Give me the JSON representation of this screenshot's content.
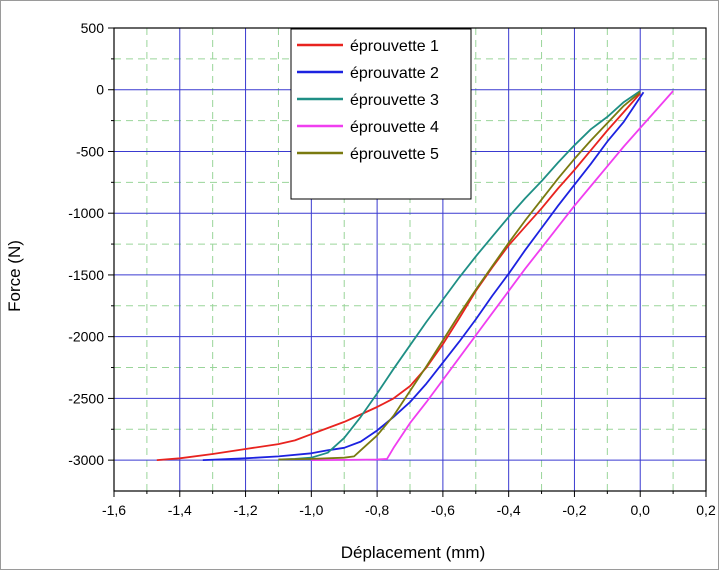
{
  "chart_data": {
    "type": "line",
    "xlabel": "Déplacement (mm)",
    "ylabel": "Force (N)",
    "xlim": [
      -1.6,
      0.2
    ],
    "ylim": [
      -3250,
      500
    ],
    "x_ticks": [
      "-1,6",
      "-1,4",
      "-1,2",
      "-1,0",
      "-0,8",
      "-0,6",
      "-0,4",
      "-0,2",
      "0,0",
      "0,2"
    ],
    "y_ticks": [
      "500",
      "0",
      "-500",
      "-1000",
      "-1500",
      "-2000",
      "-2500",
      "-3000"
    ],
    "grid": true,
    "legend_position": "top-center",
    "series": [
      {
        "name": "éprouvette 1",
        "color": "#e8231f",
        "points": [
          [
            0.0,
            -30
          ],
          [
            -0.05,
            -180
          ],
          [
            -0.1,
            -330
          ],
          [
            -0.15,
            -490
          ],
          [
            -0.2,
            -650
          ],
          [
            -0.25,
            -800
          ],
          [
            -0.3,
            -960
          ],
          [
            -0.35,
            -1110
          ],
          [
            -0.4,
            -1260
          ],
          [
            -0.45,
            -1440
          ],
          [
            -0.5,
            -1630
          ],
          [
            -0.55,
            -1850
          ],
          [
            -0.6,
            -2060
          ],
          [
            -0.65,
            -2250
          ],
          [
            -0.7,
            -2400
          ],
          [
            -0.75,
            -2500
          ],
          [
            -0.8,
            -2570
          ],
          [
            -0.85,
            -2630
          ],
          [
            -0.9,
            -2690
          ],
          [
            -0.95,
            -2740
          ],
          [
            -1.0,
            -2790
          ],
          [
            -1.05,
            -2840
          ],
          [
            -1.1,
            -2870
          ],
          [
            -1.2,
            -2910
          ],
          [
            -1.3,
            -2950
          ],
          [
            -1.4,
            -2985
          ],
          [
            -1.47,
            -3000
          ]
        ]
      },
      {
        "name": "éprouvatte 2",
        "color": "#1c22e0",
        "points": [
          [
            0.01,
            -20
          ],
          [
            -0.05,
            -260
          ],
          [
            -0.1,
            -420
          ],
          [
            -0.15,
            -600
          ],
          [
            -0.2,
            -770
          ],
          [
            -0.25,
            -940
          ],
          [
            -0.3,
            -1120
          ],
          [
            -0.35,
            -1300
          ],
          [
            -0.4,
            -1490
          ],
          [
            -0.45,
            -1670
          ],
          [
            -0.5,
            -1860
          ],
          [
            -0.55,
            -2040
          ],
          [
            -0.6,
            -2210
          ],
          [
            -0.65,
            -2380
          ],
          [
            -0.7,
            -2530
          ],
          [
            -0.75,
            -2650
          ],
          [
            -0.8,
            -2760
          ],
          [
            -0.85,
            -2850
          ],
          [
            -0.9,
            -2900
          ],
          [
            -0.95,
            -2920
          ],
          [
            -1.0,
            -2945
          ],
          [
            -1.1,
            -2970
          ],
          [
            -1.2,
            -2985
          ],
          [
            -1.33,
            -3000
          ]
        ]
      },
      {
        "name": "éprouvette 3",
        "color": "#1f8f85",
        "points": [
          [
            0.0,
            -10
          ],
          [
            -0.05,
            -100
          ],
          [
            -0.1,
            -220
          ],
          [
            -0.15,
            -320
          ],
          [
            -0.2,
            -450
          ],
          [
            -0.25,
            -590
          ],
          [
            -0.3,
            -740
          ],
          [
            -0.35,
            -880
          ],
          [
            -0.4,
            -1030
          ],
          [
            -0.45,
            -1190
          ],
          [
            -0.5,
            -1350
          ],
          [
            -0.55,
            -1520
          ],
          [
            -0.6,
            -1700
          ],
          [
            -0.65,
            -1880
          ],
          [
            -0.7,
            -2070
          ],
          [
            -0.75,
            -2260
          ],
          [
            -0.8,
            -2460
          ],
          [
            -0.85,
            -2650
          ],
          [
            -0.9,
            -2820
          ],
          [
            -0.95,
            -2940
          ],
          [
            -1.0,
            -2980
          ],
          [
            -1.05,
            -2990
          ],
          [
            -1.1,
            -2995
          ]
        ]
      },
      {
        "name": "éprouvette 4",
        "color": "#f03ef0",
        "points": [
          [
            0.1,
            -10
          ],
          [
            0.05,
            -160
          ],
          [
            0.0,
            -310
          ],
          [
            -0.05,
            -460
          ],
          [
            -0.1,
            -620
          ],
          [
            -0.15,
            -780
          ],
          [
            -0.2,
            -940
          ],
          [
            -0.25,
            -1110
          ],
          [
            -0.3,
            -1280
          ],
          [
            -0.35,
            -1450
          ],
          [
            -0.4,
            -1630
          ],
          [
            -0.45,
            -1810
          ],
          [
            -0.5,
            -1990
          ],
          [
            -0.55,
            -2170
          ],
          [
            -0.6,
            -2350
          ],
          [
            -0.65,
            -2530
          ],
          [
            -0.7,
            -2700
          ],
          [
            -0.75,
            -2900
          ],
          [
            -0.77,
            -2990
          ],
          [
            -0.8,
            -2995
          ],
          [
            -0.9,
            -2998
          ],
          [
            -1.0,
            -3000
          ]
        ]
      },
      {
        "name": "éprouvette 5",
        "color": "#7a7a10",
        "points": [
          [
            0.0,
            -20
          ],
          [
            -0.05,
            -130
          ],
          [
            -0.1,
            -270
          ],
          [
            -0.15,
            -410
          ],
          [
            -0.2,
            -560
          ],
          [
            -0.25,
            -720
          ],
          [
            -0.3,
            -890
          ],
          [
            -0.35,
            -1060
          ],
          [
            -0.4,
            -1240
          ],
          [
            -0.45,
            -1430
          ],
          [
            -0.5,
            -1620
          ],
          [
            -0.55,
            -1820
          ],
          [
            -0.6,
            -2030
          ],
          [
            -0.65,
            -2240
          ],
          [
            -0.7,
            -2440
          ],
          [
            -0.75,
            -2640
          ],
          [
            -0.8,
            -2800
          ],
          [
            -0.85,
            -2920
          ],
          [
            -0.87,
            -2970
          ],
          [
            -0.9,
            -2980
          ],
          [
            -1.0,
            -2990
          ],
          [
            -1.1,
            -2995
          ]
        ]
      }
    ]
  }
}
